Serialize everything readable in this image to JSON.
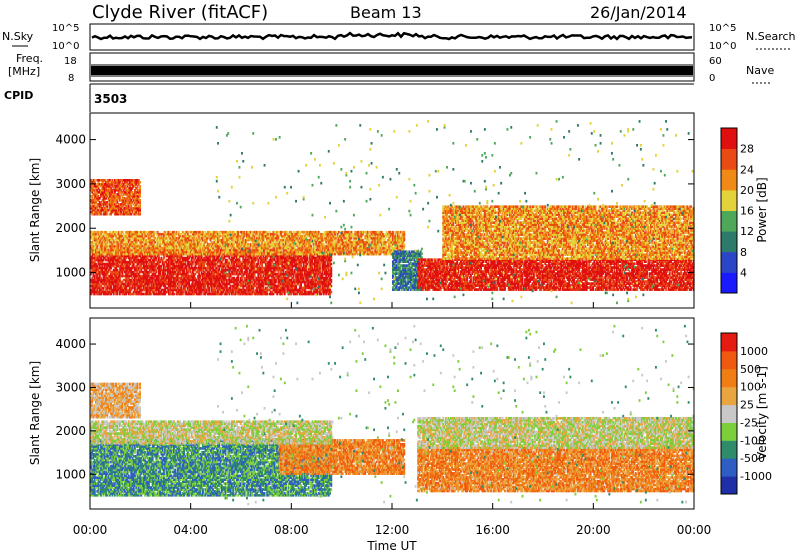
{
  "header": {
    "station": "Clyde River (fitACF)",
    "beam": "Beam 13",
    "date": "26/Jan/2014"
  },
  "noise_panel": {
    "left_label": "N.Sky",
    "right_label": "N.Search",
    "tick_top": "10^5",
    "tick_bottom": "10^0",
    "right_tick_top": "10^5",
    "right_tick_bottom": "10^0"
  },
  "freq_panel": {
    "left_label": "Freq.",
    "left_unit": "[MHz]",
    "left_tick_top": "18",
    "left_tick_bottom": "8",
    "right_label": "Nave",
    "right_tick_top": "60",
    "right_tick_bottom": "0"
  },
  "cpid_panel": {
    "label": "CPID",
    "value": "3503"
  },
  "colors": {
    "noise_line": "#000000",
    "freq_band": "#000000",
    "axis": "#000000"
  },
  "chart_data": [
    {
      "type": "heatmap",
      "panel": "power",
      "ylabel": "Slant Range [km]",
      "ylim": [
        200,
        4600
      ],
      "yticks": [
        1000,
        2000,
        3000,
        4000
      ],
      "x_ticks_label": [
        "00:00",
        "04:00",
        "08:00",
        "12:00",
        "16:00",
        "20:00",
        "00:00"
      ],
      "xlim_hours": [
        0,
        24
      ],
      "colorbar": {
        "label": "Power [dB]",
        "tick_labels": [
          "4",
          "8",
          "12",
          "16",
          "20",
          "24",
          "28"
        ],
        "colors": [
          "#1a1aff",
          "#2b45c7",
          "#2e7a6a",
          "#4ea85a",
          "#e3d23a",
          "#f08a16",
          "#ea4a14",
          "#e01010"
        ]
      },
      "scatter_regions": [
        {
          "t0": 0.0,
          "t1": 9.6,
          "r0": 500,
          "r1": 1500,
          "level": 7
        },
        {
          "t0": 0.0,
          "t1": 12.5,
          "r0": 1400,
          "r1": 1900,
          "level": 5
        },
        {
          "t0": 0.0,
          "t1": 2.0,
          "r0": 2300,
          "r1": 3100,
          "level": 6
        },
        {
          "t0": 12.0,
          "t1": 13.2,
          "r0": 600,
          "r1": 1500,
          "level": 2
        },
        {
          "t0": 13.0,
          "t1": 24.0,
          "r0": 600,
          "r1": 1300,
          "level": 7
        },
        {
          "t0": 14.0,
          "t1": 24.0,
          "r0": 1300,
          "r1": 2500,
          "level": 5
        },
        {
          "t0": 5.0,
          "t1": 24.0,
          "r0": 300,
          "r1": 4400,
          "level": 3
        }
      ]
    },
    {
      "type": "heatmap",
      "panel": "velocity",
      "ylabel": "Slant Range [km]",
      "ylim": [
        200,
        4600
      ],
      "yticks": [
        1000,
        2000,
        3000,
        4000
      ],
      "x_ticks_label": [
        "00:00",
        "04:00",
        "08:00",
        "12:00",
        "16:00",
        "20:00",
        "00:00"
      ],
      "xlabel": "Time UT",
      "xlim_hours": [
        0,
        24
      ],
      "colorbar": {
        "label": "Velocity [m s-1]",
        "tick_labels": [
          "1000",
          "500",
          "100",
          "25",
          "-25",
          "-100",
          "-500",
          "-1000"
        ],
        "colors": [
          "#1f2fa8",
          "#2e5ec4",
          "#2e8c6b",
          "#7ccf3a",
          "#c8c8c8",
          "#e9a640",
          "#f07e15",
          "#f05a10",
          "#e51a10"
        ]
      },
      "scatter_regions": [
        {
          "t0": 0.0,
          "t1": 9.6,
          "r0": 500,
          "r1": 1800,
          "level": 2
        },
        {
          "t0": 7.5,
          "t1": 12.5,
          "r0": 1000,
          "r1": 1800,
          "level": 6
        },
        {
          "t0": 0.0,
          "t1": 9.6,
          "r0": 1700,
          "r1": 2200,
          "level": 4
        },
        {
          "t0": 13.0,
          "t1": 24.0,
          "r0": 600,
          "r1": 1600,
          "level": 6
        },
        {
          "t0": 13.0,
          "t1": 24.0,
          "r0": 1600,
          "r1": 2300,
          "level": 4
        },
        {
          "t0": 0.0,
          "t1": 2.0,
          "r0": 2300,
          "r1": 3100,
          "level": 5
        },
        {
          "t0": 5.0,
          "t1": 24.0,
          "r0": 300,
          "r1": 4400,
          "level": 3
        }
      ]
    }
  ]
}
